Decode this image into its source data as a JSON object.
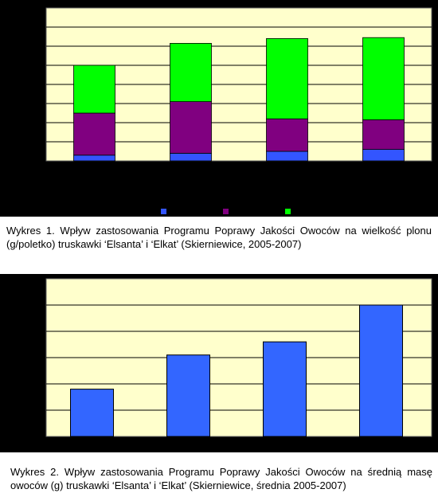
{
  "chart_data": [
    {
      "type": "bar",
      "stacked": true,
      "background": "#000000",
      "plot_color": "#ffffcc",
      "grid": true,
      "legend_placement": "bottom",
      "categories": [
        "",
        "",
        "",
        ""
      ],
      "series": [
        {
          "color": "#3355ff",
          "values": [
            30,
            40,
            50,
            60
          ]
        },
        {
          "color": "#800080",
          "values": [
            220,
            270,
            170,
            155
          ]
        },
        {
          "color": "#00ff00",
          "values": [
            250,
            305,
            420,
            430
          ]
        }
      ],
      "ylim": [
        0,
        800
      ],
      "ytick_step": 100,
      "yticks": [
        "",
        "",
        "",
        "",
        "",
        "",
        "",
        "",
        ""
      ]
    },
    {
      "type": "bar",
      "background": "#000000",
      "plot_color": "#ffffcc",
      "grid": true,
      "categories": [
        "",
        "",
        "",
        ""
      ],
      "values": [
        18,
        31,
        36,
        50
      ],
      "bar_color": "#3366ff",
      "ylim": [
        0,
        60
      ],
      "ytick_step": 10,
      "yticks": [
        "",
        "",
        "",
        "",
        "",
        "",
        ""
      ]
    }
  ],
  "captions": {
    "chart1": "Wykres 1. Wpływ zastosowania Programu Poprawy Jakości Owoców na wielkość plonu (g/poletko) truskawki ‘Elsanta’ i ‘Elkat’ (Skierniewice,  2005-2007)",
    "chart2": "Wykres 2. Wpływ zastosowania Programu Poprawy Jakości Owoców na średnią masę owoców  (g) truskawki ‘Elsanta’ i ‘Elkat’ (Skierniewice, średnia 2005-2007)"
  }
}
